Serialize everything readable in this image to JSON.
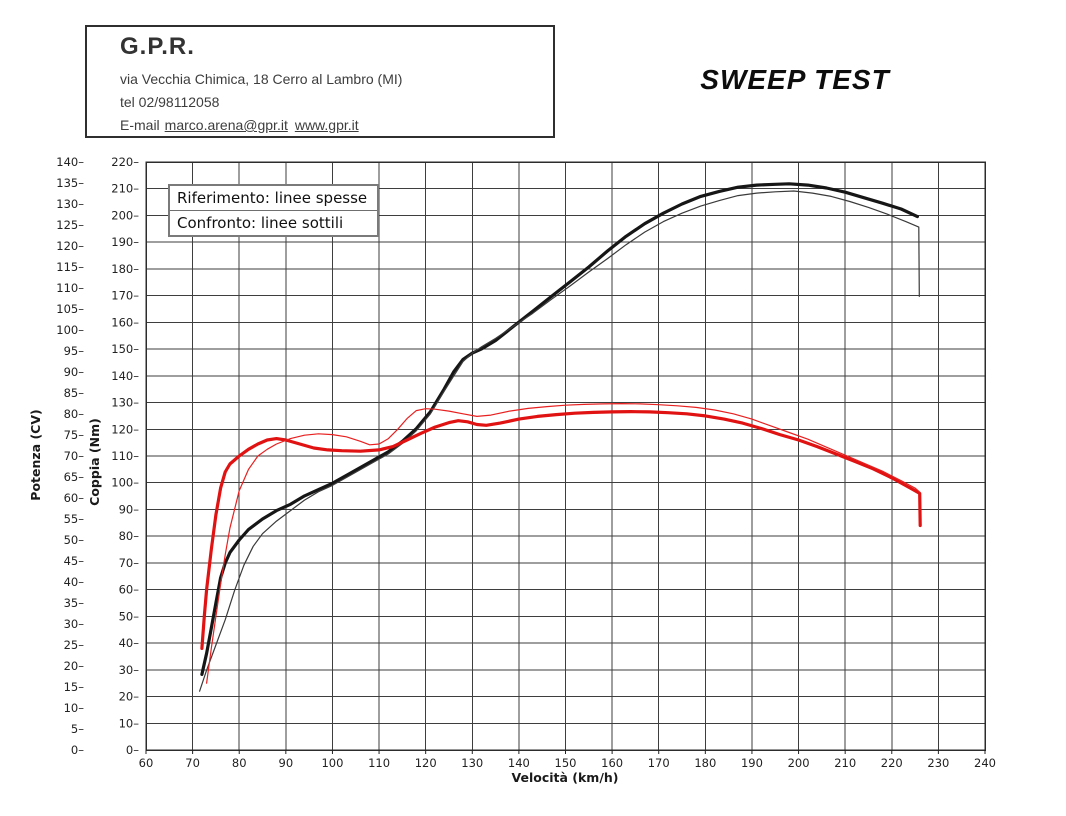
{
  "header": {
    "company": "G.P.R.",
    "address": "via Vecchia Chimica, 18 Cerro al Lambro (MI)",
    "phone": "tel 02/98112058",
    "email_label": "E-mail",
    "email": "marco.arena@gpr.it",
    "website": "www.gpr.it"
  },
  "title": "SWEEP TEST",
  "legend": {
    "reference": "Riferimento: linee spesse",
    "comparison": "Confronto: linee sottili"
  },
  "chart_data": {
    "type": "line",
    "xlabel": "Velocità (km/h)",
    "grid": true,
    "x_axis": {
      "range": [
        60,
        240
      ],
      "step": 10
    },
    "power_axis": {
      "label": "Potenza (CV)",
      "range": [
        0,
        140
      ],
      "step": 5,
      "color": "#1a1a1a"
    },
    "torque_axis": {
      "label": "Coppia (Nm)",
      "range": [
        0,
        220
      ],
      "step": 10,
      "color": "#dd1111"
    },
    "series": [
      {
        "name": "Potenza riferimento (linea spessa)",
        "axis": "power",
        "color": "#161616",
        "width": 3.2,
        "points": [
          [
            72,
            18
          ],
          [
            73,
            23
          ],
          [
            74,
            29
          ],
          [
            75,
            35
          ],
          [
            76,
            41
          ],
          [
            77,
            44.5
          ],
          [
            78,
            47
          ],
          [
            80,
            50
          ],
          [
            82,
            52.5
          ],
          [
            85,
            55
          ],
          [
            88,
            57
          ],
          [
            91,
            58.5
          ],
          [
            94,
            60.5
          ],
          [
            97,
            62
          ],
          [
            100,
            63.5
          ],
          [
            104,
            66
          ],
          [
            108,
            68.5
          ],
          [
            112,
            71
          ],
          [
            115,
            73.5
          ],
          [
            118,
            76.5
          ],
          [
            121,
            80.5
          ],
          [
            124,
            86
          ],
          [
            126,
            90
          ],
          [
            128,
            93
          ],
          [
            130,
            94.5
          ],
          [
            132,
            95.5
          ],
          [
            135,
            97.5
          ],
          [
            139,
            101
          ],
          [
            143,
            104.5
          ],
          [
            147,
            108
          ],
          [
            151,
            111.5
          ],
          [
            155,
            115
          ],
          [
            159,
            118.8
          ],
          [
            163,
            122.3
          ],
          [
            167,
            125.3
          ],
          [
            171,
            127.8
          ],
          [
            175,
            130
          ],
          [
            179,
            131.8
          ],
          [
            183,
            133
          ],
          [
            187,
            134
          ],
          [
            191,
            134.5
          ],
          [
            195,
            134.7
          ],
          [
            198,
            134.8
          ],
          [
            202,
            134.5
          ],
          [
            206,
            133.8
          ],
          [
            210,
            132.8
          ],
          [
            214,
            131.5
          ],
          [
            218,
            130.2
          ],
          [
            222,
            128.8
          ],
          [
            225.5,
            127
          ]
        ]
      },
      {
        "name": "Potenza confronto (linea sottile)",
        "axis": "power",
        "color": "#3a3a3a",
        "width": 1.2,
        "points": [
          [
            71.5,
            14
          ],
          [
            73,
            19
          ],
          [
            75,
            25
          ],
          [
            77,
            31
          ],
          [
            79,
            38
          ],
          [
            81,
            44
          ],
          [
            83,
            48.5
          ],
          [
            85,
            51.5
          ],
          [
            88,
            54.5
          ],
          [
            91,
            57
          ],
          [
            94,
            59.5
          ],
          [
            97,
            61.5
          ],
          [
            100,
            63
          ],
          [
            104,
            65.5
          ],
          [
            108,
            68
          ],
          [
            112,
            70.5
          ],
          [
            115,
            73
          ],
          [
            118,
            76
          ],
          [
            121,
            80
          ],
          [
            124,
            85.5
          ],
          [
            126,
            89
          ],
          [
            128,
            92.5
          ],
          [
            130,
            94.5
          ],
          [
            132,
            96
          ],
          [
            135,
            98
          ],
          [
            139,
            101
          ],
          [
            143,
            104
          ],
          [
            147,
            107.3
          ],
          [
            151,
            110.5
          ],
          [
            155,
            113.8
          ],
          [
            159,
            117
          ],
          [
            163,
            120.3
          ],
          [
            167,
            123.3
          ],
          [
            171,
            125.8
          ],
          [
            175,
            127.8
          ],
          [
            179,
            129.5
          ],
          [
            183,
            130.8
          ],
          [
            187,
            132
          ],
          [
            191,
            132.6
          ],
          [
            195,
            132.9
          ],
          [
            199,
            133.1
          ],
          [
            203,
            132.6
          ],
          [
            207,
            131.8
          ],
          [
            211,
            130.6
          ],
          [
            215,
            129.2
          ],
          [
            219,
            127.6
          ],
          [
            223,
            125.8
          ],
          [
            225.8,
            124.5
          ],
          [
            225.9,
            108
          ]
        ]
      },
      {
        "name": "Coppia riferimento (linea spessa)",
        "axis": "torque",
        "color": "#e01212",
        "width": 3.2,
        "points": [
          [
            72,
            38
          ],
          [
            72.5,
            50
          ],
          [
            73,
            60
          ],
          [
            74,
            75
          ],
          [
            75,
            88
          ],
          [
            76,
            98
          ],
          [
            77,
            104
          ],
          [
            78,
            107
          ],
          [
            80,
            110
          ],
          [
            82,
            112.5
          ],
          [
            84,
            114.5
          ],
          [
            86,
            116
          ],
          [
            88,
            116.5
          ],
          [
            90,
            116
          ],
          [
            93,
            114.5
          ],
          [
            96,
            113
          ],
          [
            99,
            112.3
          ],
          [
            102,
            112
          ],
          [
            106,
            111.8
          ],
          [
            110,
            112.3
          ],
          [
            113,
            113.5
          ],
          [
            116,
            116
          ],
          [
            119,
            118.5
          ],
          [
            122,
            120.8
          ],
          [
            125,
            122.5
          ],
          [
            127,
            123.2
          ],
          [
            129,
            122.8
          ],
          [
            131,
            121.8
          ],
          [
            133,
            121.5
          ],
          [
            136,
            122.3
          ],
          [
            140,
            123.8
          ],
          [
            144,
            124.8
          ],
          [
            148,
            125.5
          ],
          [
            152,
            126
          ],
          [
            156,
            126.3
          ],
          [
            160,
            126.5
          ],
          [
            164,
            126.6
          ],
          [
            168,
            126.5
          ],
          [
            172,
            126.2
          ],
          [
            176,
            125.8
          ],
          [
            180,
            125
          ],
          [
            184,
            123.8
          ],
          [
            188,
            122.3
          ],
          [
            192,
            120.3
          ],
          [
            196,
            118
          ],
          [
            200,
            116
          ],
          [
            204,
            113.5
          ],
          [
            208,
            110.8
          ],
          [
            212,
            108
          ],
          [
            216,
            105.2
          ],
          [
            220,
            101.8
          ],
          [
            224,
            98
          ],
          [
            226,
            96
          ],
          [
            226.1,
            84
          ]
        ]
      },
      {
        "name": "Coppia confronto (linea sottile)",
        "axis": "torque",
        "color": "#e82020",
        "width": 1.2,
        "points": [
          [
            73,
            25
          ],
          [
            74,
            38
          ],
          [
            75,
            50
          ],
          [
            76,
            62
          ],
          [
            77,
            73
          ],
          [
            78,
            83
          ],
          [
            80,
            97
          ],
          [
            82,
            105
          ],
          [
            84,
            110
          ],
          [
            86,
            112.5
          ],
          [
            88,
            114.5
          ],
          [
            91,
            116.5
          ],
          [
            94,
            117.8
          ],
          [
            97,
            118.3
          ],
          [
            100,
            118
          ],
          [
            103,
            117.2
          ],
          [
            106,
            115.5
          ],
          [
            108,
            114.2
          ],
          [
            110,
            114.5
          ],
          [
            112,
            116.5
          ],
          [
            114,
            120
          ],
          [
            116,
            124
          ],
          [
            118,
            127
          ],
          [
            120,
            127.7
          ],
          [
            122,
            127.5
          ],
          [
            125,
            126.8
          ],
          [
            128,
            125.8
          ],
          [
            131,
            124.8
          ],
          [
            134,
            125.3
          ],
          [
            138,
            126.8
          ],
          [
            142,
            127.8
          ],
          [
            146,
            128.5
          ],
          [
            150,
            129
          ],
          [
            154,
            129.3
          ],
          [
            158,
            129.5
          ],
          [
            162,
            129.6
          ],
          [
            166,
            129.5
          ],
          [
            170,
            129.2
          ],
          [
            174,
            128.8
          ],
          [
            178,
            128.2
          ],
          [
            182,
            127.2
          ],
          [
            186,
            125.8
          ],
          [
            190,
            123.8
          ],
          [
            194,
            121.3
          ],
          [
            198,
            118.8
          ],
          [
            202,
            116.3
          ],
          [
            206,
            113.3
          ],
          [
            210,
            110.3
          ],
          [
            214,
            107.3
          ],
          [
            218,
            104.3
          ],
          [
            222,
            100.8
          ],
          [
            225,
            98
          ],
          [
            226,
            96.5
          ]
        ]
      }
    ]
  }
}
